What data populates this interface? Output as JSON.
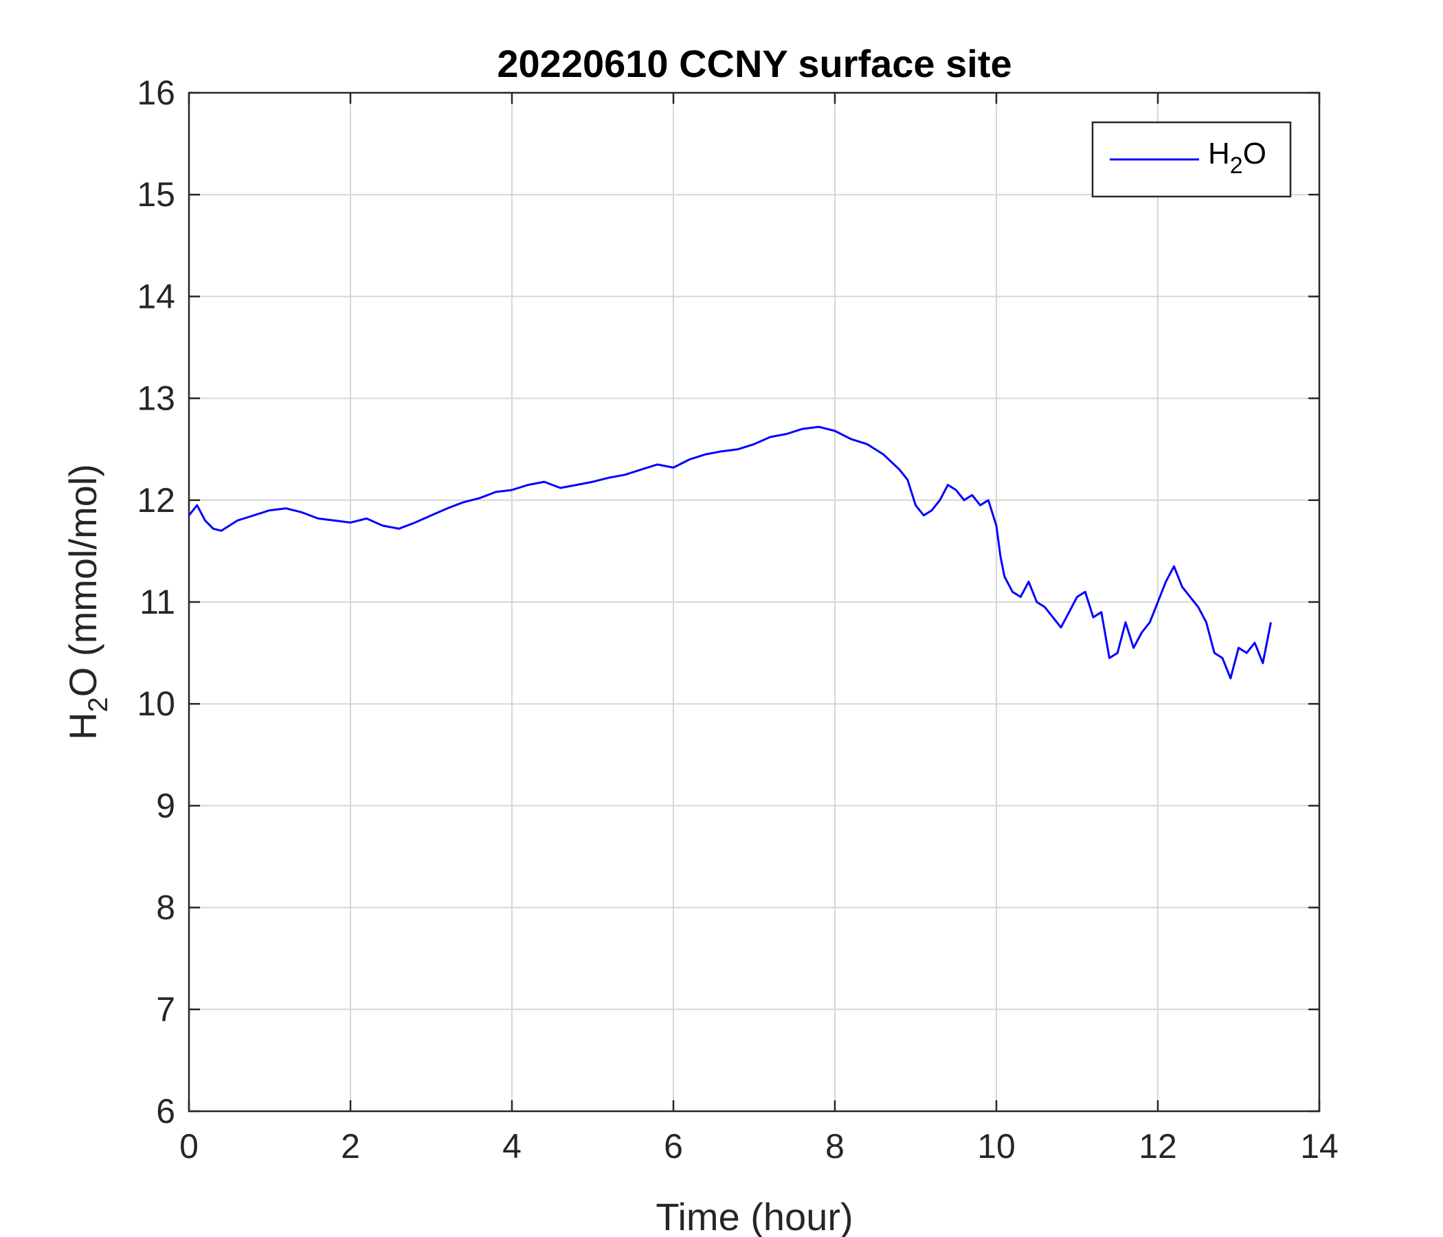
{
  "chart_data": {
    "type": "line",
    "title": "20220610 CCNY surface site",
    "xlabel": "Time (hour)",
    "ylabel": {
      "main": "H",
      "sub": "2",
      "rest": "O (mmol/mol)"
    },
    "xlim": [
      0,
      14
    ],
    "ylim": [
      6,
      16
    ],
    "x_ticks": [
      "0",
      "2",
      "4",
      "6",
      "8",
      "10",
      "12",
      "14"
    ],
    "y_ticks": [
      "6",
      "7",
      "8",
      "9",
      "10",
      "11",
      "12",
      "13",
      "14",
      "15",
      "16"
    ],
    "grid": true,
    "legend_position": "top-right",
    "series": [
      {
        "name": {
          "main": "H",
          "sub": "2",
          "rest": "O"
        },
        "color": "#0000ff",
        "x": [
          0,
          0.1,
          0.2,
          0.3,
          0.4,
          0.5,
          0.6,
          0.8,
          1.0,
          1.2,
          1.4,
          1.6,
          1.8,
          2.0,
          2.2,
          2.4,
          2.6,
          2.8,
          3.0,
          3.2,
          3.4,
          3.6,
          3.8,
          4.0,
          4.2,
          4.4,
          4.6,
          4.8,
          5.0,
          5.2,
          5.4,
          5.6,
          5.8,
          6.0,
          6.2,
          6.4,
          6.6,
          6.8,
          7.0,
          7.2,
          7.4,
          7.6,
          7.8,
          8.0,
          8.2,
          8.4,
          8.6,
          8.8,
          8.9,
          9.0,
          9.1,
          9.2,
          9.3,
          9.4,
          9.5,
          9.6,
          9.7,
          9.8,
          9.9,
          10.0,
          10.05,
          10.1,
          10.2,
          10.3,
          10.4,
          10.5,
          10.6,
          10.7,
          10.8,
          10.9,
          11.0,
          11.1,
          11.2,
          11.3,
          11.4,
          11.5,
          11.6,
          11.7,
          11.8,
          11.9,
          12.0,
          12.1,
          12.2,
          12.3,
          12.4,
          12.5,
          12.6,
          12.7,
          12.8,
          12.9,
          13.0,
          13.1,
          13.2,
          13.3,
          13.4
        ],
        "y": [
          11.85,
          11.95,
          11.8,
          11.72,
          11.7,
          11.75,
          11.8,
          11.85,
          11.9,
          11.92,
          11.88,
          11.82,
          11.8,
          11.78,
          11.82,
          11.75,
          11.72,
          11.78,
          11.85,
          11.92,
          11.98,
          12.02,
          12.08,
          12.1,
          12.15,
          12.18,
          12.12,
          12.15,
          12.18,
          12.22,
          12.25,
          12.3,
          12.35,
          12.32,
          12.4,
          12.45,
          12.48,
          12.5,
          12.55,
          12.62,
          12.65,
          12.7,
          12.72,
          12.68,
          12.6,
          12.55,
          12.45,
          12.3,
          12.2,
          11.95,
          11.85,
          11.9,
          12.0,
          12.15,
          12.1,
          12.0,
          12.05,
          11.95,
          12.0,
          11.75,
          11.45,
          11.25,
          11.1,
          11.05,
          11.2,
          11.0,
          10.95,
          10.85,
          10.75,
          10.9,
          11.05,
          11.1,
          10.85,
          10.9,
          10.45,
          10.5,
          10.8,
          10.55,
          10.7,
          10.8,
          11.0,
          11.2,
          11.35,
          11.15,
          11.05,
          10.95,
          10.8,
          10.5,
          10.45,
          10.25,
          10.55,
          10.5,
          10.6,
          10.4,
          10.8
        ]
      }
    ]
  }
}
